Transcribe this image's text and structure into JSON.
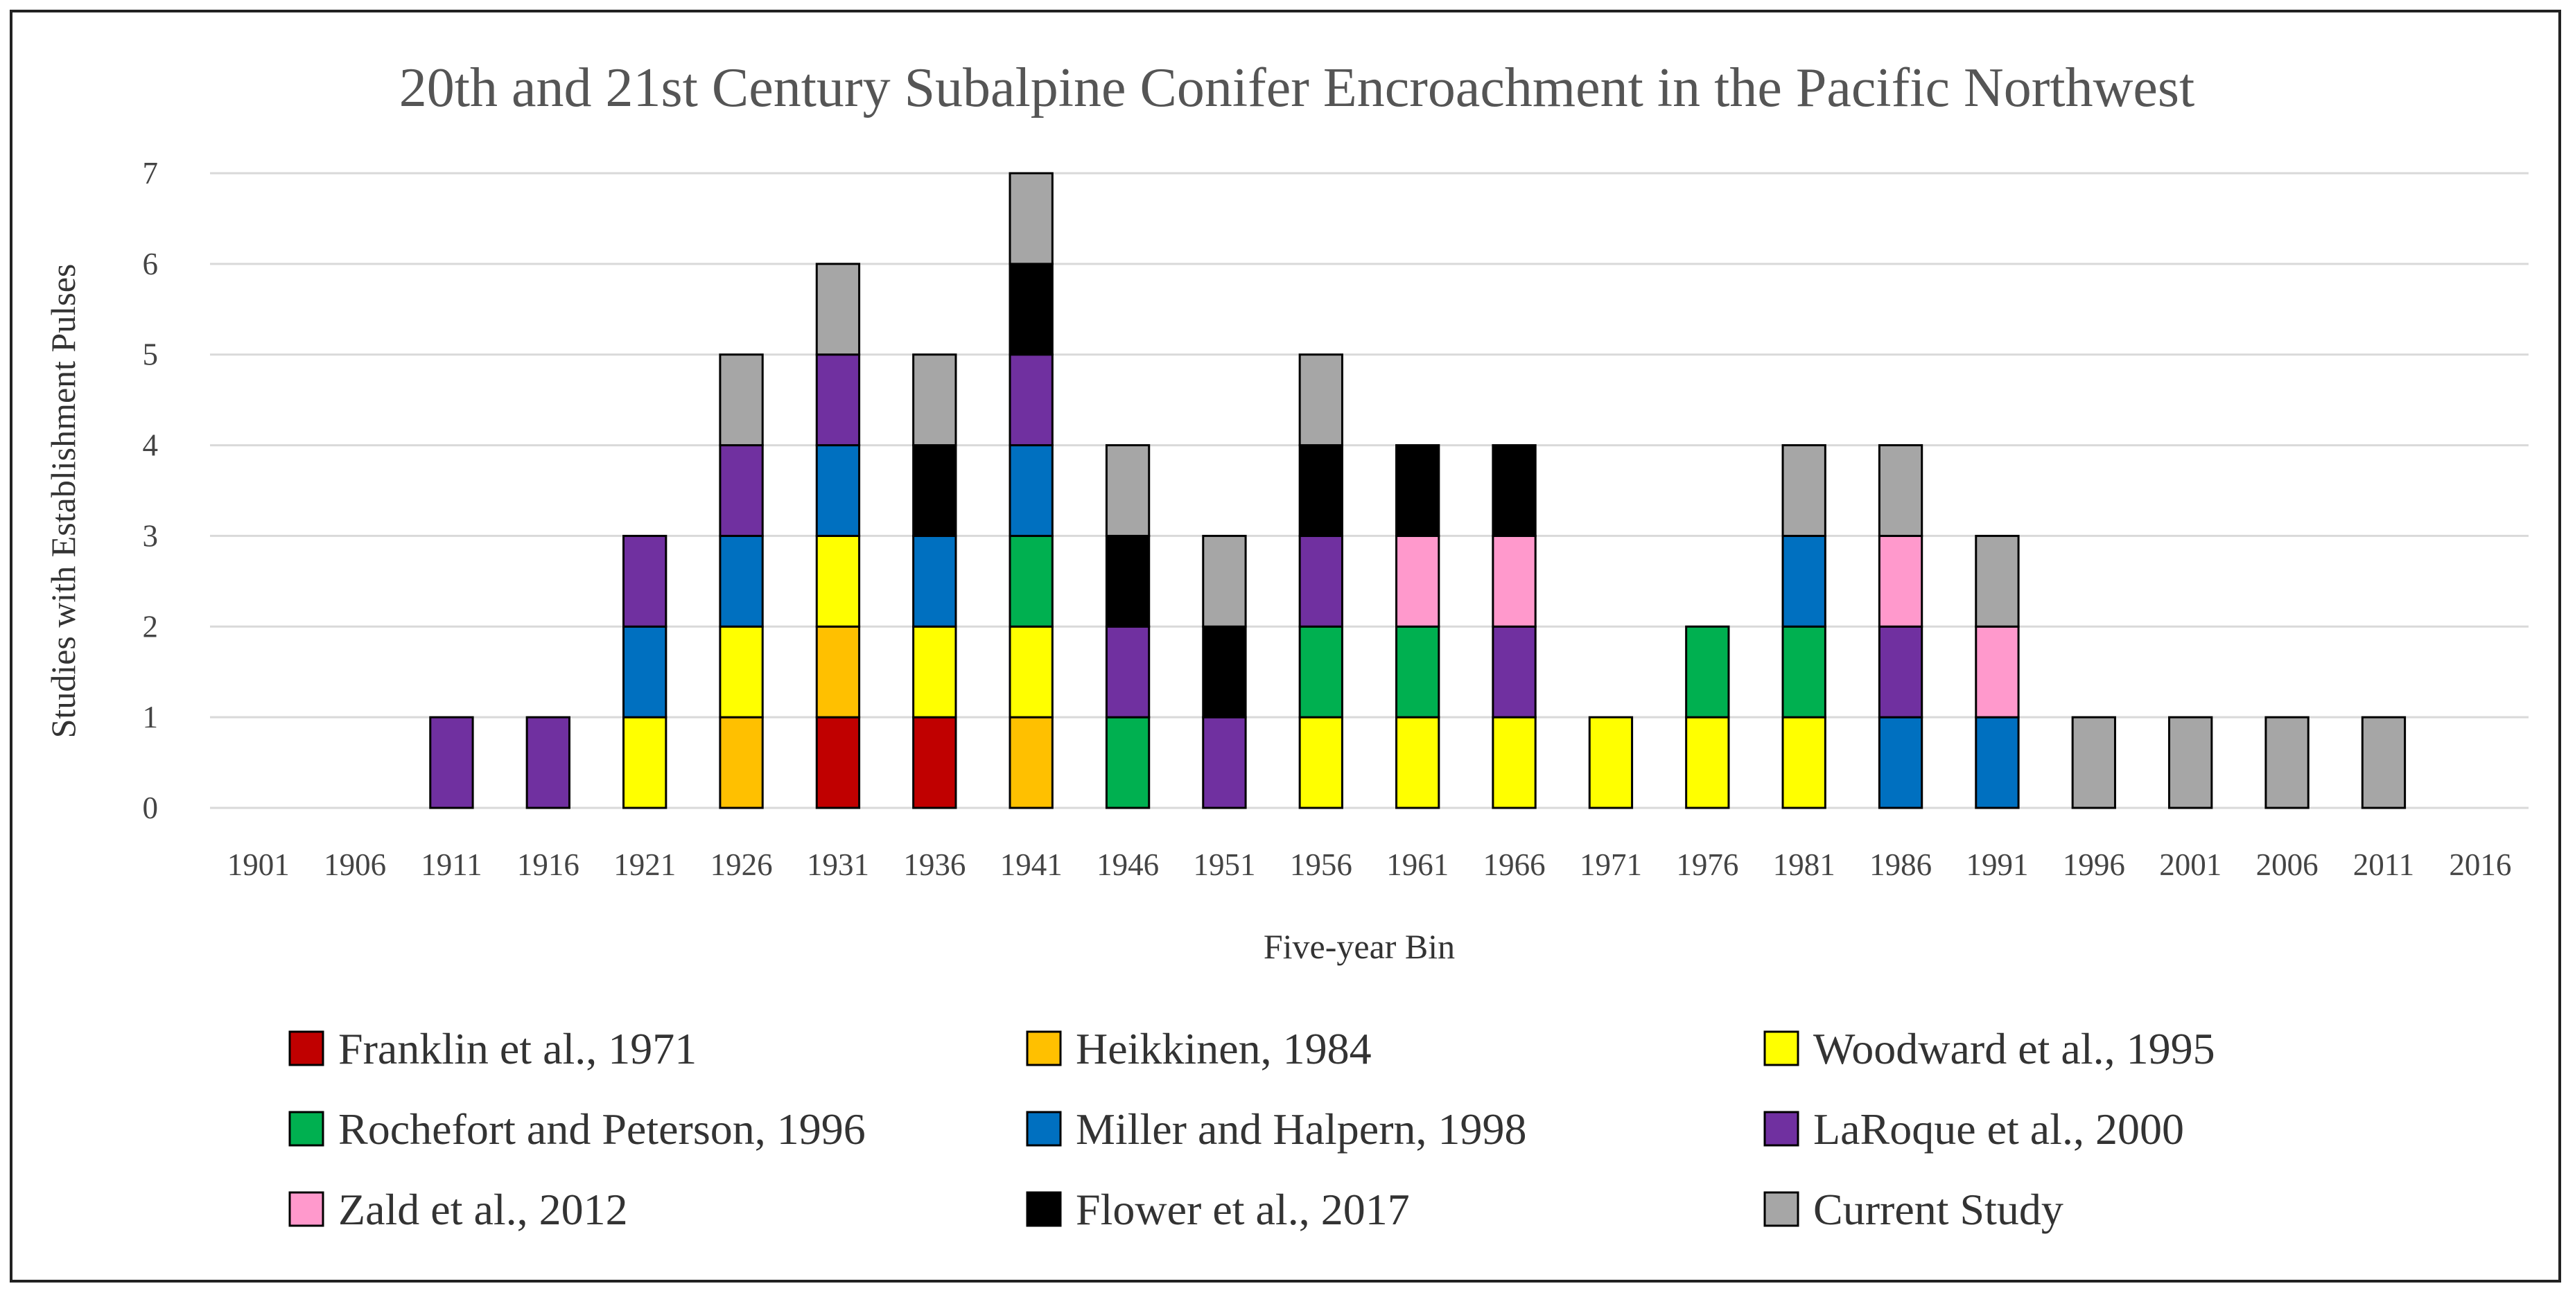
{
  "chart_data": {
    "type": "bar",
    "stacked": true,
    "title": "20th and 21st Century Subalpine Conifer Encroachment in the Pacific Northwest",
    "xlabel": "Five-year Bin",
    "ylabel": "Studies with Establishment Pulses",
    "ylim": [
      0,
      7
    ],
    "yticks": [
      0,
      1,
      2,
      3,
      4,
      5,
      6,
      7
    ],
    "grid": true,
    "legend_position": "bottom",
    "categories": [
      "1901",
      "1906",
      "1911",
      "1916",
      "1921",
      "1926",
      "1931",
      "1936",
      "1941",
      "1946",
      "1951",
      "1956",
      "1961",
      "1966",
      "1971",
      "1976",
      "1981",
      "1986",
      "1991",
      "1996",
      "2001",
      "2006",
      "2011",
      "2016"
    ],
    "series": [
      {
        "name": "Franklin et al., 1971",
        "color": "#C00000",
        "values": [
          0,
          0,
          0,
          0,
          0,
          0,
          1,
          1,
          0,
          0,
          0,
          0,
          0,
          0,
          0,
          0,
          0,
          0,
          0,
          0,
          0,
          0,
          0,
          0
        ]
      },
      {
        "name": "Heikkinen, 1984",
        "color": "#FFC000",
        "values": [
          0,
          0,
          0,
          0,
          0,
          1,
          1,
          0,
          1,
          0,
          0,
          0,
          0,
          0,
          0,
          0,
          0,
          0,
          0,
          0,
          0,
          0,
          0,
          0
        ]
      },
      {
        "name": "Woodward et al., 1995",
        "color": "#FFFF00",
        "values": [
          0,
          0,
          0,
          0,
          1,
          1,
          1,
          1,
          1,
          0,
          0,
          1,
          1,
          1,
          1,
          1,
          1,
          0,
          0,
          0,
          0,
          0,
          0,
          0
        ]
      },
      {
        "name": "Rochefort and Peterson, 1996",
        "color": "#00B050",
        "values": [
          0,
          0,
          0,
          0,
          0,
          0,
          0,
          0,
          1,
          1,
          0,
          1,
          1,
          0,
          0,
          1,
          1,
          0,
          0,
          0,
          0,
          0,
          0,
          0
        ]
      },
      {
        "name": "Miller and Halpern, 1998",
        "color": "#0070C0",
        "values": [
          0,
          0,
          0,
          0,
          1,
          1,
          1,
          1,
          1,
          0,
          0,
          0,
          0,
          0,
          0,
          0,
          1,
          1,
          1,
          0,
          0,
          0,
          0,
          0
        ]
      },
      {
        "name": "LaRoque et al., 2000",
        "color": "#7030A0",
        "values": [
          0,
          0,
          1,
          1,
          1,
          1,
          1,
          0,
          1,
          1,
          1,
          1,
          0,
          1,
          0,
          0,
          0,
          1,
          0,
          0,
          0,
          0,
          0,
          0
        ]
      },
      {
        "name": "Zald et al., 2012",
        "color": "#FF99CC",
        "values": [
          0,
          0,
          0,
          0,
          0,
          0,
          0,
          0,
          0,
          0,
          0,
          0,
          1,
          1,
          0,
          0,
          0,
          1,
          1,
          0,
          0,
          0,
          0,
          0
        ]
      },
      {
        "name": "Flower et al., 2017",
        "color": "#000000",
        "values": [
          0,
          0,
          0,
          0,
          0,
          0,
          0,
          1,
          1,
          1,
          1,
          1,
          1,
          1,
          0,
          0,
          0,
          0,
          0,
          0,
          0,
          0,
          0,
          0
        ]
      },
      {
        "name": "Current Study",
        "color": "#A6A6A6",
        "values": [
          0,
          0,
          0,
          0,
          0,
          1,
          1,
          1,
          1,
          1,
          1,
          1,
          0,
          0,
          0,
          0,
          1,
          1,
          1,
          1,
          1,
          1,
          1,
          0
        ]
      }
    ]
  }
}
